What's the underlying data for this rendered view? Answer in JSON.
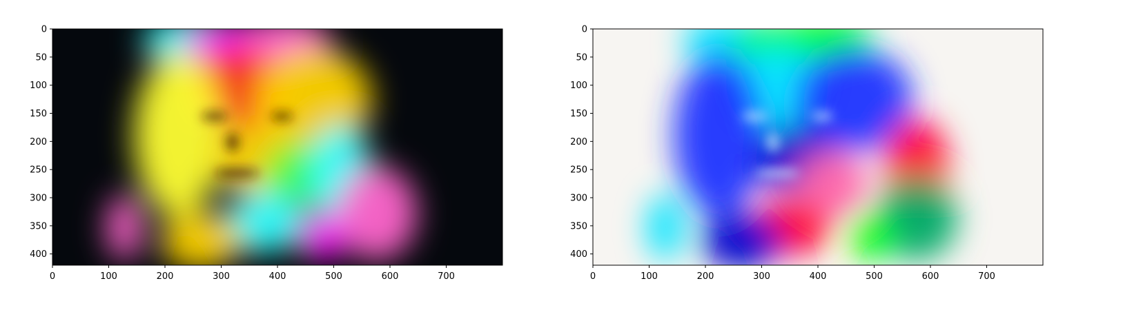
{
  "chart_data": [
    {
      "type": "heatmap",
      "role": "image-display",
      "title": "",
      "xlabel": "",
      "ylabel": "",
      "xlim": [
        0,
        800
      ],
      "ylim": [
        420,
        0
      ],
      "x_ticks": [
        0,
        100,
        200,
        300,
        400,
        500,
        600,
        700
      ],
      "y_ticks": [
        0,
        50,
        100,
        150,
        200,
        250,
        300,
        350,
        400
      ],
      "background_color": "#05080d",
      "content": "rainbow-tinted portrait of a woman with long hair on black background",
      "colors": [
        "#ff00ff",
        "#ff2a1a",
        "#ffd400",
        "#ffff33",
        "#44ff44",
        "#33ffff",
        "#ff66cc"
      ]
    },
    {
      "type": "heatmap",
      "role": "image-display",
      "title": "",
      "xlabel": "",
      "ylabel": "",
      "xlim": [
        0,
        800
      ],
      "ylim": [
        420,
        0
      ],
      "x_ticks": [
        0,
        100,
        200,
        300,
        400,
        500,
        600,
        700
      ],
      "y_ticks": [
        0,
        50,
        100,
        150,
        200,
        250,
        300,
        350,
        400
      ],
      "background_color": "#f7f5f2",
      "content": "color-inverted version of the same portrait on near-white background",
      "colors": [
        "#00ff00",
        "#00e5ff",
        "#1a33ff",
        "#0000cc",
        "#ff0033",
        "#ff66aa",
        "#00aa66"
      ]
    }
  ]
}
